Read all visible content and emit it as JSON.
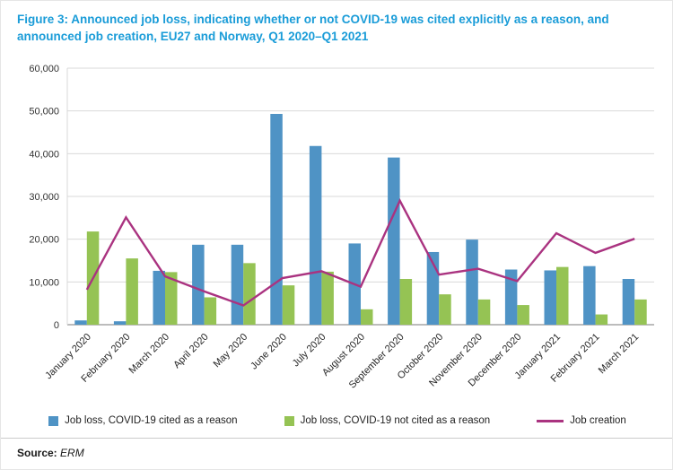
{
  "title": {
    "line1": "Figure 3: Announced job loss, indicating whether or not COVID-19 was cited explicitly as a reason, and",
    "line2": "announced job creation, EU27 and Norway, Q1 2020–Q1 2021"
  },
  "source": {
    "label": "Source:",
    "value": "ERM"
  },
  "colors": {
    "title_blue": "#1a9cd8",
    "bar_cited_blue": "#4f93c5",
    "bar_not_cited_green": "#95c354",
    "line_magenta": "#aa3380",
    "gridline": "#d9d9d9",
    "axis_baseline": "#a6a6a6",
    "tick_text": "#333333"
  },
  "chart_data": {
    "type": "combo",
    "title": "Announced job loss (COVID-19 cited / not cited) and announced job creation, EU27 and Norway",
    "xlabel": "",
    "ylabel": "",
    "ylim": [
      0,
      60000
    ],
    "ytick_step": 10000,
    "grid": true,
    "legend_position": "bottom",
    "categories": [
      "January 2020",
      "February 2020",
      "March 2020",
      "April 2020",
      "May 2020",
      "June 2020",
      "July 2020",
      "August 2020",
      "September 2020",
      "October 2020",
      "November 2020",
      "December 2020",
      "January 2021",
      "February 2021",
      "March 2021"
    ],
    "series": [
      {
        "name": "Job loss, COVID-19 cited as a reason",
        "type": "bar",
        "color": "#4f93c5",
        "values": [
          1000,
          800,
          12600,
          18700,
          18700,
          49300,
          41800,
          19000,
          39100,
          17000,
          19900,
          12900,
          12700,
          13700,
          10700
        ]
      },
      {
        "name": "Job loss, COVID-19 not cited as a reason",
        "type": "bar",
        "color": "#95c354",
        "values": [
          21800,
          15500,
          12300,
          6400,
          14400,
          9200,
          12400,
          3600,
          10700,
          7100,
          5900,
          4600,
          13500,
          2400,
          5900
        ]
      },
      {
        "name": "Job creation",
        "type": "line",
        "color": "#aa3380",
        "values": [
          8200,
          25100,
          11300,
          7800,
          4500,
          10900,
          12500,
          8900,
          29000,
          11700,
          13100,
          10200,
          21400,
          16800,
          20100
        ]
      }
    ]
  }
}
